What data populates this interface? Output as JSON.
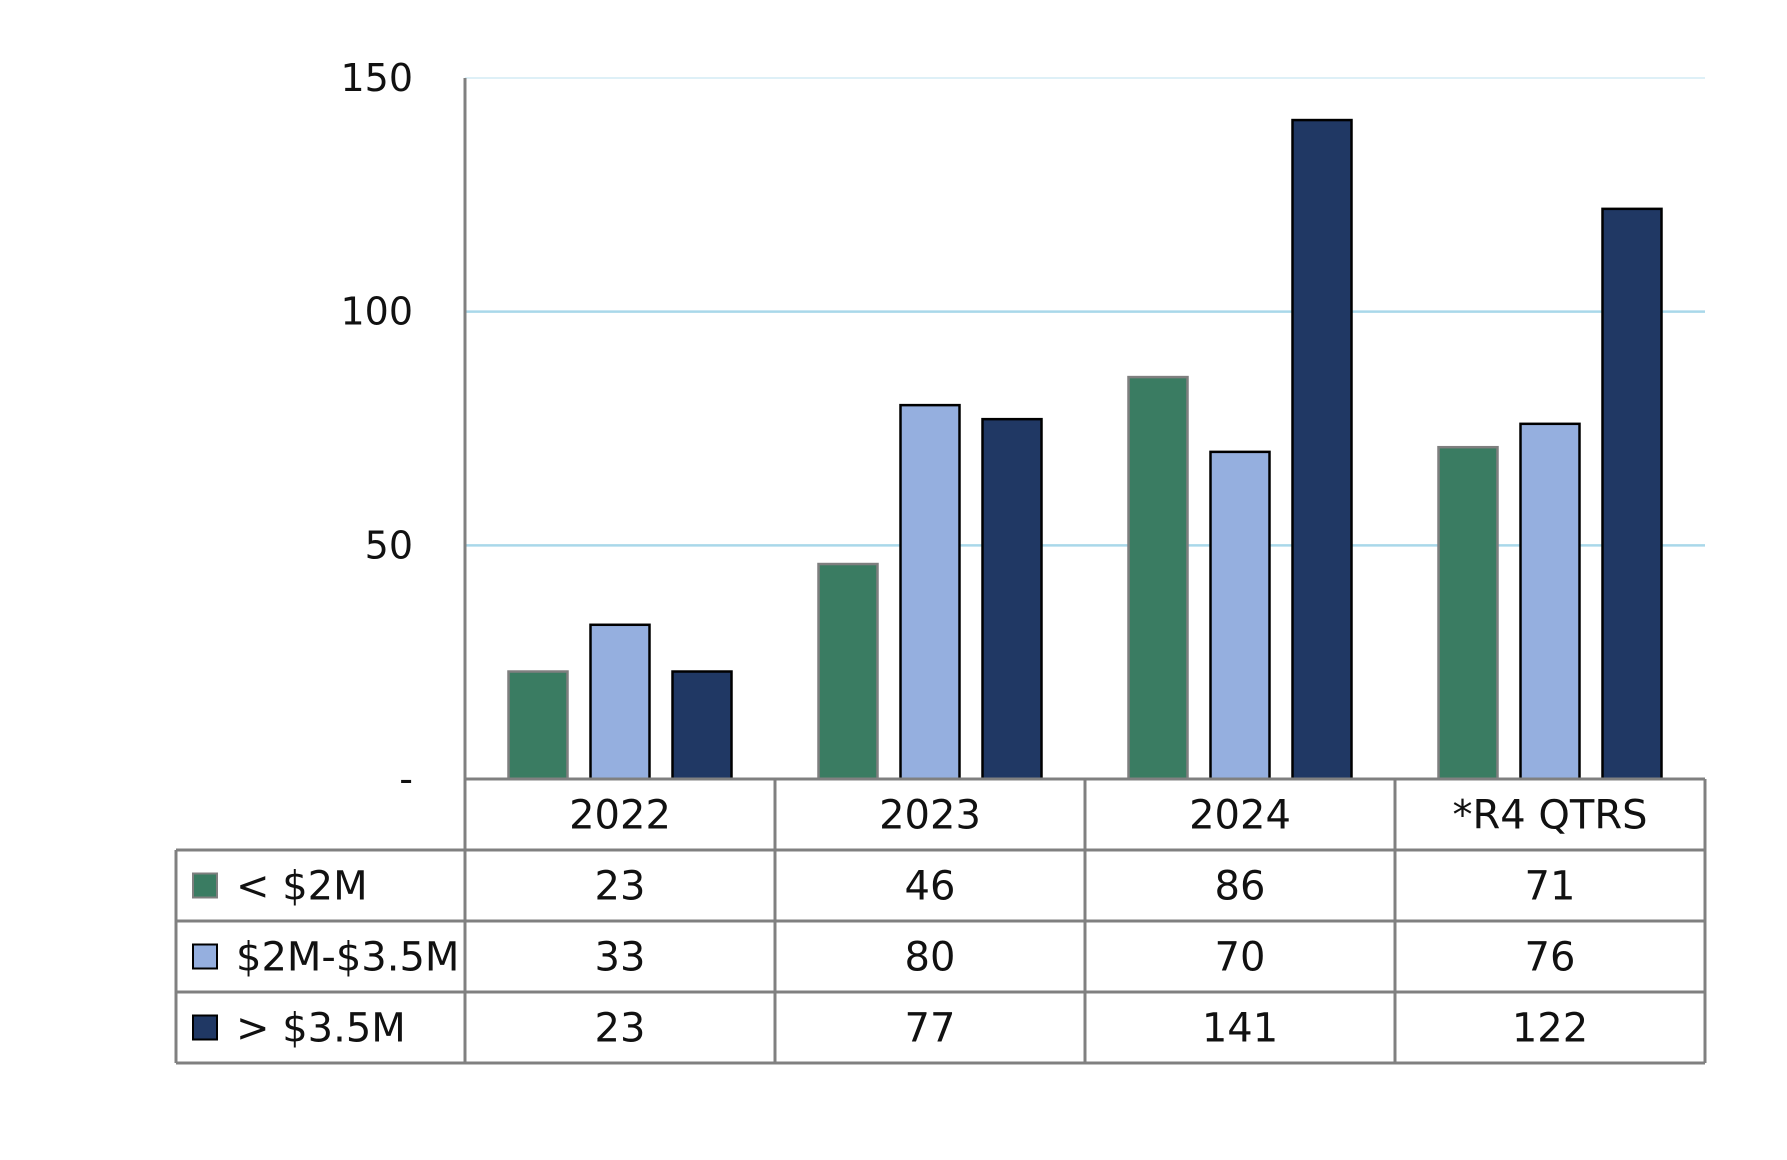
{
  "chart_data": {
    "type": "bar",
    "categories": [
      "2022",
      "2023",
      "2024",
      "*R4 QTRS"
    ],
    "series": [
      {
        "name": "< $2M",
        "values": [
          23,
          46,
          86,
          71
        ],
        "color": "#3a7c62"
      },
      {
        "name": "$2M-$3.5M",
        "values": [
          33,
          80,
          70,
          76
        ],
        "color": "#95afdf"
      },
      {
        "name": "> $3.5M",
        "values": [
          23,
          77,
          141,
          122
        ],
        "color": "#203864"
      }
    ],
    "ylim": [
      0,
      150
    ],
    "yticks": [
      {
        "value": 0,
        "label": "-"
      },
      {
        "value": 50,
        "label": "50"
      },
      {
        "value": 100,
        "label": "100"
      },
      {
        "value": 150,
        "label": "150"
      }
    ],
    "grid": true,
    "gridline_color": "#a9d8ea",
    "legend": "data-table-bottom",
    "title": "",
    "xlabel": "",
    "ylabel": ""
  }
}
